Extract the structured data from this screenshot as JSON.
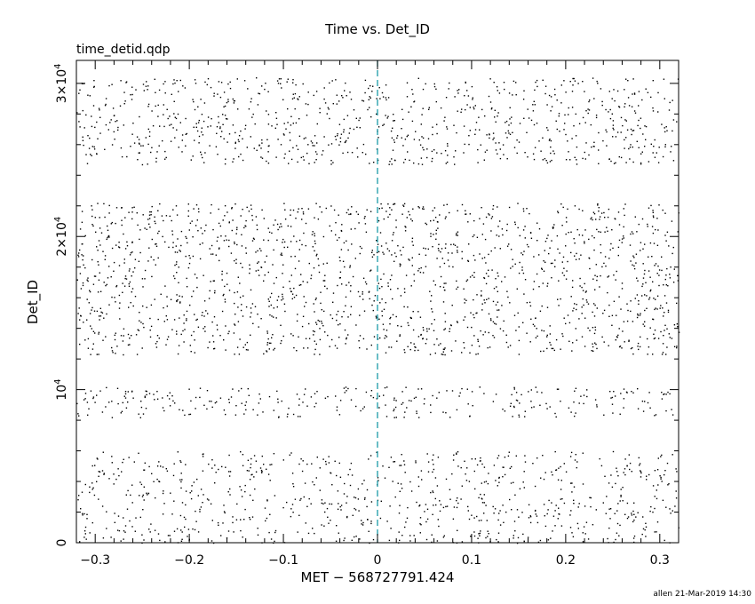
{
  "chart_data": {
    "type": "scatter",
    "title": "Time vs. Det_ID",
    "subtitle": "time_detid.qdp",
    "xlabel": "MET − 568727791.424",
    "ylabel": "Det_ID",
    "xlim": [
      -0.32,
      0.32
    ],
    "ylim": [
      0,
      31500
    ],
    "x_ticks": [
      -0.3,
      -0.2,
      -0.1,
      0,
      0.1,
      0.2,
      0.3
    ],
    "x_tick_labels": [
      "−0.3",
      "−0.2",
      "−0.1",
      "0",
      "0.1",
      "0.2",
      "0.3"
    ],
    "y_ticks": [
      0,
      10000,
      20000,
      30000
    ],
    "y_tick_labels": [
      {
        "mant": "0",
        "exp": ""
      },
      {
        "mant": "10",
        "exp": "4"
      },
      {
        "mant": "2×10",
        "exp": "4"
      },
      {
        "mant": "3×10",
        "exp": "4"
      }
    ],
    "reference_line": {
      "x": 0,
      "color": "#1a9aa8",
      "style": "dashed"
    },
    "point_color": "#000000",
    "bands": [
      {
        "y_min": 0,
        "y_max": 6000,
        "density": 820
      },
      {
        "y_min": 8200,
        "y_max": 10200,
        "density": 300
      },
      {
        "y_min": 12300,
        "y_max": 22200,
        "density": 1700
      },
      {
        "y_min": 24700,
        "y_max": 30400,
        "density": 900
      }
    ]
  },
  "footer": "allen 21-Mar-2019 14:30"
}
